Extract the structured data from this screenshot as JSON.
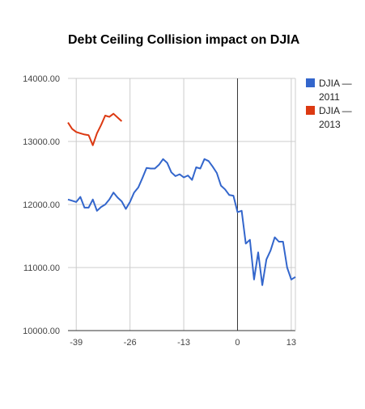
{
  "chart_data": {
    "type": "line",
    "title": "Debt Ceiling Collision impact on DJIA",
    "xlabel": "",
    "ylabel": "",
    "xlim": [
      -41,
      14
    ],
    "ylim": [
      10000,
      14000
    ],
    "yticks": [
      10000,
      11000,
      12000,
      13000,
      14000
    ],
    "yticklabels": [
      "10000.00",
      "11000.00",
      "12000.00",
      "13000.00",
      "14000.00"
    ],
    "xticks": [
      -39,
      -26,
      -13,
      0,
      13
    ],
    "xticklabels": [
      "-39",
      "-26",
      "-13",
      "0",
      "13"
    ],
    "grid": true,
    "vertical_reference_line_x": 0,
    "legend_position": "right",
    "series": [
      {
        "name": "DJIA — 2011",
        "color": "#3366cc",
        "x": [
          -41,
          -40,
          -39,
          -38,
          -37,
          -36,
          -35,
          -34,
          -33,
          -32,
          -31,
          -30,
          -29,
          -28,
          -27,
          -26,
          -25,
          -24,
          -23,
          -22,
          -21,
          -20,
          -19,
          -18,
          -17,
          -16,
          -15,
          -14,
          -13,
          -12,
          -11,
          -10,
          -9,
          -8,
          -7,
          -6,
          -5,
          -4,
          -3,
          -2,
          -1,
          0,
          1,
          2,
          3,
          4,
          5,
          6,
          7,
          8,
          9,
          10,
          11,
          12,
          13,
          14
        ],
        "y": [
          12080,
          12060,
          12040,
          12120,
          11950,
          11950,
          12080,
          11900,
          11960,
          12000,
          12080,
          12190,
          12110,
          12050,
          11930,
          12040,
          12190,
          12270,
          12420,
          12580,
          12570,
          12570,
          12630,
          12720,
          12660,
          12510,
          12450,
          12480,
          12430,
          12460,
          12390,
          12590,
          12570,
          12720,
          12690,
          12600,
          12500,
          12300,
          12240,
          12150,
          12140,
          11880,
          11900,
          11380,
          11440,
          10810,
          11240,
          10720,
          11130,
          11270,
          11480,
          11410,
          11410,
          11000,
          10810,
          10850
        ]
      },
      {
        "name": "DJIA — 2013",
        "color": "#dc3912",
        "x": [
          -41,
          -40,
          -39,
          -38,
          -37,
          -36,
          -35,
          -34,
          -33,
          -32,
          -31,
          -30,
          -29,
          -28
        ],
        "y": [
          13300,
          13200,
          13150,
          13130,
          13110,
          13100,
          12940,
          13130,
          13260,
          13410,
          13390,
          13440,
          13380,
          13320
        ]
      }
    ]
  }
}
